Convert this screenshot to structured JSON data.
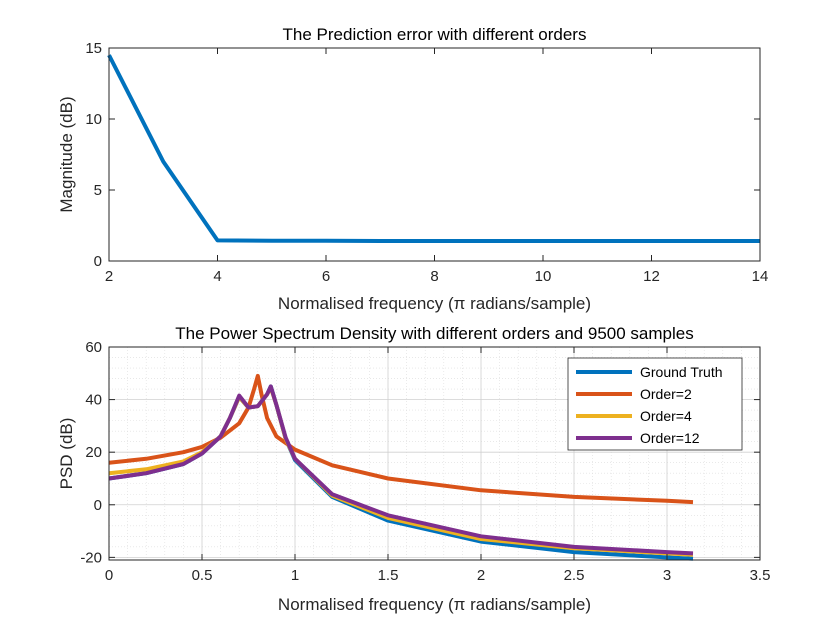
{
  "chart_data": [
    {
      "type": "line",
      "title": "The Prediction error with different orders",
      "xlabel": "Normalised frequency (π radians/sample)",
      "ylabel": "Magnitude (dB)",
      "xlim": [
        2,
        14
      ],
      "ylim": [
        0,
        15
      ],
      "xticks": [
        2,
        4,
        6,
        8,
        10,
        12,
        14
      ],
      "yticks": [
        0,
        5,
        10,
        15
      ],
      "grid": false,
      "series": [
        {
          "color": "#0072BD",
          "x": [
            2,
            3,
            4,
            5,
            6,
            7,
            8,
            9,
            10,
            11,
            12,
            13,
            14
          ],
          "y": [
            14.5,
            7.0,
            1.45,
            1.42,
            1.42,
            1.41,
            1.41,
            1.41,
            1.41,
            1.41,
            1.41,
            1.41,
            1.41
          ]
        }
      ]
    },
    {
      "type": "line",
      "title": "The Power Spectrum Density with different orders and 9500 samples",
      "xlabel": "Normalised frequency (π radians/sample)",
      "ylabel": "PSD (dB)",
      "xlim": [
        0,
        3.5
      ],
      "ylim": [
        -21,
        60
      ],
      "xticks": [
        0,
        0.5,
        1,
        1.5,
        2,
        2.5,
        3,
        3.5
      ],
      "yticks": [
        -20,
        0,
        20,
        40,
        60
      ],
      "grid": true,
      "minor_grid": true,
      "legend_position": "top-right",
      "series": [
        {
          "name": "Ground Truth",
          "color": "#0072BD",
          "x": [
            0,
            0.2,
            0.4,
            0.5,
            0.6,
            0.65,
            0.7,
            0.75,
            0.8,
            0.85,
            0.87,
            0.9,
            0.95,
            1.0,
            1.2,
            1.5,
            2.0,
            2.5,
            3.0,
            3.14
          ],
          "y": [
            10,
            12,
            15.5,
            19.5,
            26,
            33,
            41,
            37,
            37.5,
            42,
            45,
            38,
            25,
            17,
            3,
            -6,
            -14,
            -18,
            -20,
            -20.5
          ]
        },
        {
          "name": "Order=2",
          "color": "#D95319",
          "x": [
            0,
            0.2,
            0.4,
            0.5,
            0.6,
            0.7,
            0.75,
            0.78,
            0.8,
            0.82,
            0.85,
            0.9,
            1.0,
            1.2,
            1.5,
            2.0,
            2.5,
            3.0,
            3.14
          ],
          "y": [
            16,
            17.5,
            20,
            22,
            25.5,
            31,
            37,
            44,
            49,
            42,
            33,
            26,
            21,
            15,
            10,
            5.5,
            3,
            1.5,
            1
          ]
        },
        {
          "name": "Order=4",
          "color": "#EDB120",
          "x": [
            0,
            0.2,
            0.4,
            0.5,
            0.6,
            0.65,
            0.7,
            0.75,
            0.8,
            0.85,
            0.87,
            0.9,
            0.95,
            1.0,
            1.2,
            1.5,
            2.0,
            2.5,
            3.0,
            3.14
          ],
          "y": [
            12,
            13.5,
            16.5,
            20,
            26,
            33,
            41,
            37,
            37.5,
            42,
            44.5,
            38,
            25,
            17.5,
            3.5,
            -5,
            -13,
            -16.5,
            -18.5,
            -19
          ]
        },
        {
          "name": "Order=12",
          "color": "#7E2F8E",
          "x": [
            0,
            0.2,
            0.4,
            0.5,
            0.6,
            0.65,
            0.7,
            0.75,
            0.8,
            0.85,
            0.87,
            0.9,
            0.95,
            1.0,
            1.2,
            1.5,
            2.0,
            2.5,
            3.0,
            3.14
          ],
          "y": [
            10,
            12,
            15.5,
            19.5,
            26,
            33,
            41.5,
            37,
            37.5,
            42,
            45,
            38,
            25.5,
            17.5,
            4,
            -4,
            -12,
            -16,
            -18,
            -18.5
          ]
        }
      ]
    }
  ]
}
